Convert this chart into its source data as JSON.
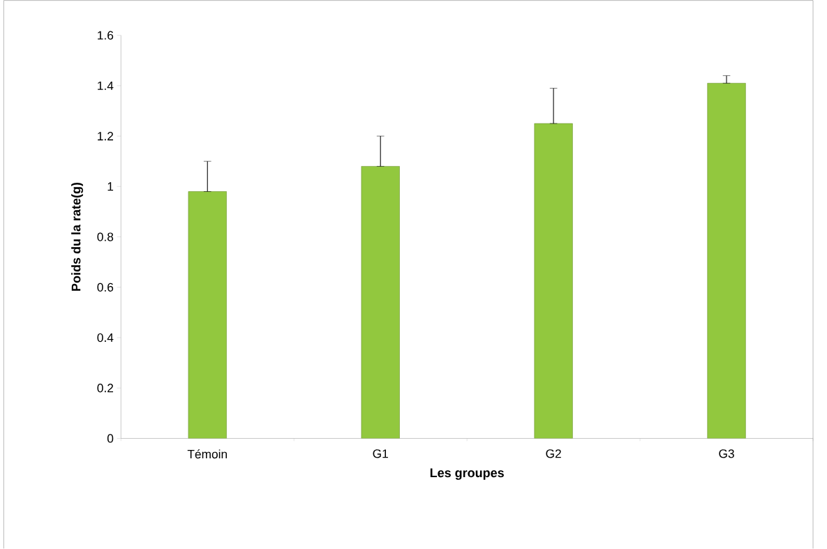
{
  "chart_data": {
    "type": "bar",
    "xlabel": "Les groupes",
    "ylabel": "Poids du la rate(g)",
    "categories": [
      "Témoin",
      "G1",
      "G2",
      "G3"
    ],
    "values": [
      0.98,
      1.08,
      1.25,
      1.41
    ],
    "errors": [
      [
        0.98,
        1.1
      ],
      [
        1.08,
        1.2
      ],
      [
        1.25,
        1.39
      ],
      [
        1.41,
        1.44
      ]
    ],
    "color": "#92c83e",
    "ylim": [
      0,
      1.6
    ],
    "yticks": [
      0,
      0.2,
      0.4,
      0.6,
      0.8,
      1,
      1.2,
      1.4,
      1.6
    ],
    "grid": false
  }
}
